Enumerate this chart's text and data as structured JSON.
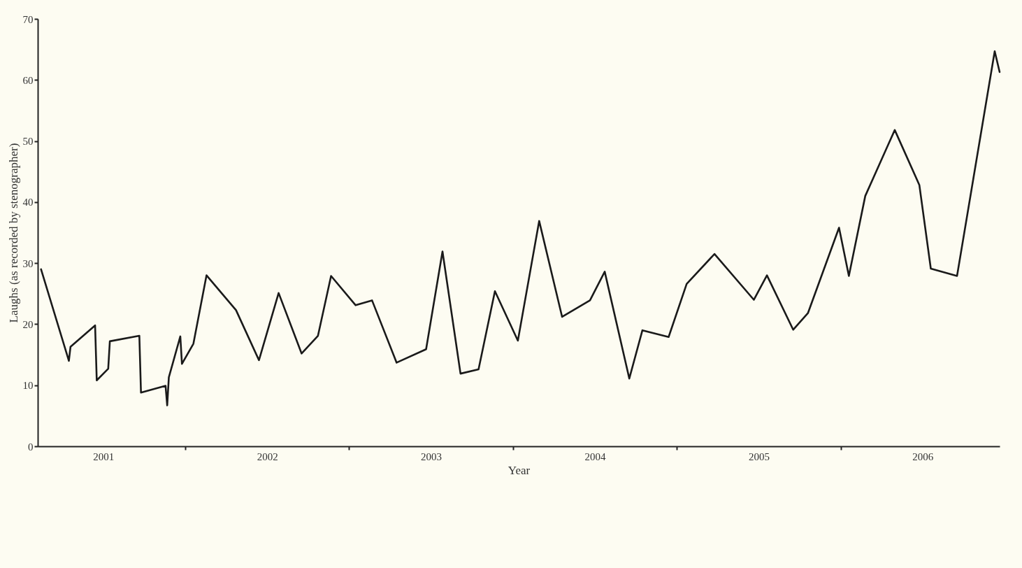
{
  "chart_data": {
    "type": "line",
    "xlabel": "Year",
    "ylabel": "Laughs (as recorded by stenographer)",
    "x": [
      2000.62,
      2000.79,
      2000.8,
      2000.95,
      2000.96,
      2001.03,
      2001.04,
      2001.22,
      2001.23,
      2001.38,
      2001.39,
      2001.4,
      2001.47,
      2001.48,
      2001.55,
      2001.63,
      2001.81,
      2001.95,
      2002.07,
      2002.21,
      2002.31,
      2002.39,
      2002.54,
      2002.64,
      2002.79,
      2002.97,
      2003.07,
      2003.18,
      2003.29,
      2003.39,
      2003.53,
      2003.66,
      2003.8,
      2003.97,
      2004.06,
      2004.21,
      2004.29,
      2004.45,
      2004.56,
      2004.73,
      2004.97,
      2005.05,
      2005.21,
      2005.3,
      2005.49,
      2005.55,
      2005.65,
      2005.83,
      2005.98,
      2006.05,
      2006.21,
      2006.44,
      2006.47
    ],
    "series": [
      {
        "color": "#1a1a1a",
        "values": [
          29,
          14,
          16.3,
          19.8,
          10.8,
          12.7,
          17.2,
          18.1,
          8.8,
          9.9,
          6.7,
          11.3,
          18,
          13.5,
          16.8,
          28,
          22.3,
          14.1,
          25.1,
          15.2,
          18.1,
          27.9,
          23.1,
          23.9,
          13.7,
          15.9,
          31.9,
          11.9,
          12.6,
          25.4,
          17.3,
          36.9,
          21.2,
          23.9,
          28.6,
          11.1,
          19,
          17.9,
          26.6,
          31.5,
          24,
          28,
          19.1,
          21.8,
          35.8,
          27.9,
          41,
          51.8,
          42.8,
          29.1,
          27.9,
          64.7,
          61.3
        ]
      }
    ],
    "xlim": [
      2000.6,
      2006.47
    ],
    "xticks": [
      2001,
      {
        "value": 2001.5,
        "label": null
      },
      2002,
      {
        "value": 2002.5,
        "label": null
      },
      2003,
      {
        "value": 2003.5,
        "label": null
      },
      2004,
      {
        "value": 2004.5,
        "label": null
      },
      2005,
      {
        "value": 2005.5,
        "label": null
      },
      2006
    ],
    "ylim": [
      0,
      70
    ],
    "yticks": [
      0,
      10,
      20,
      30,
      40,
      50,
      60,
      70
    ],
    "grid": false,
    "legend": false,
    "marker": "none",
    "line_style": "solid"
  }
}
